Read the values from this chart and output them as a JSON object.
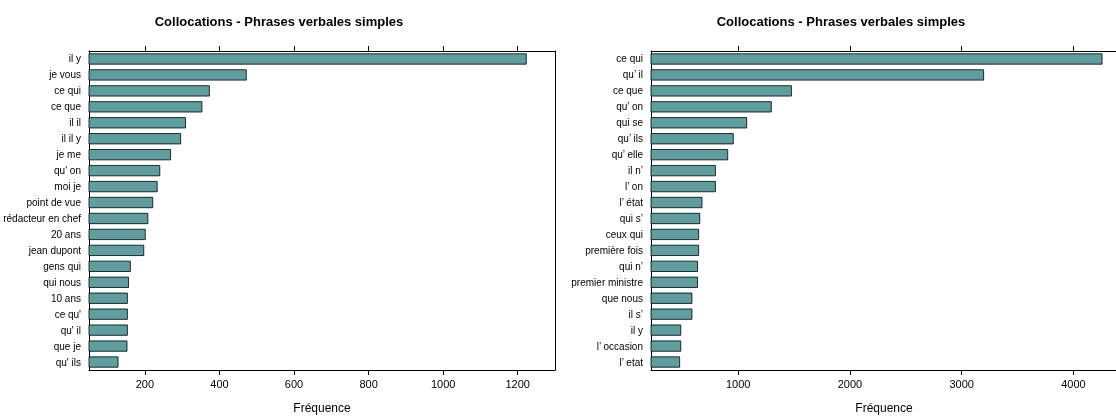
{
  "chart_data": [
    {
      "type": "bar",
      "orientation": "horizontal",
      "title": "Collocations - Phrases verbales simples",
      "xlabel": "Fréquence",
      "color": "#5f9ea0",
      "xlim": [
        50,
        1300
      ],
      "xticks": [
        200,
        400,
        600,
        800,
        1000,
        1200
      ],
      "grid": false,
      "categories": [
        "il y",
        "je vous",
        "ce qui",
        "ce que",
        "il il",
        "il il y",
        "je me",
        "qu' on",
        "moi je",
        "point de vue",
        "rédacteur en chef",
        "20 ans",
        "jean dupont",
        "gens qui",
        "qui nous",
        "10 ans",
        "ce qu'",
        "qu' il",
        "que je",
        "qu' ils"
      ],
      "values": [
        1224,
        473,
        374,
        354,
        310,
        297,
        270,
        241,
        234,
        222,
        209,
        202,
        198,
        162,
        157,
        154,
        154,
        154,
        153,
        129
      ]
    },
    {
      "type": "bar",
      "orientation": "horizontal",
      "title": "Collocations - Phrases verbales simples",
      "xlabel": "Fréquence",
      "color": "#5f9ea0",
      "xlim": [
        220,
        4390
      ],
      "xticks": [
        1000,
        2000,
        3000,
        4000
      ],
      "grid": false,
      "categories": [
        "ce qui",
        "qu’ il",
        "ce que",
        "qu’ on",
        "qui se",
        "qu’ ils",
        "qu’ elle",
        "il n’",
        "l’ on",
        "l’ état",
        "qui s’",
        "ceux qui",
        "première fois",
        "qui n’",
        "premier ministre",
        "que nous",
        "il s’",
        "il y",
        "l’ occasion",
        "l’ etat"
      ],
      "values": [
        4260,
        3200,
        1480,
        1300,
        1080,
        960,
        910,
        800,
        800,
        680,
        660,
        650,
        650,
        640,
        640,
        590,
        590,
        490,
        490,
        480
      ]
    }
  ]
}
